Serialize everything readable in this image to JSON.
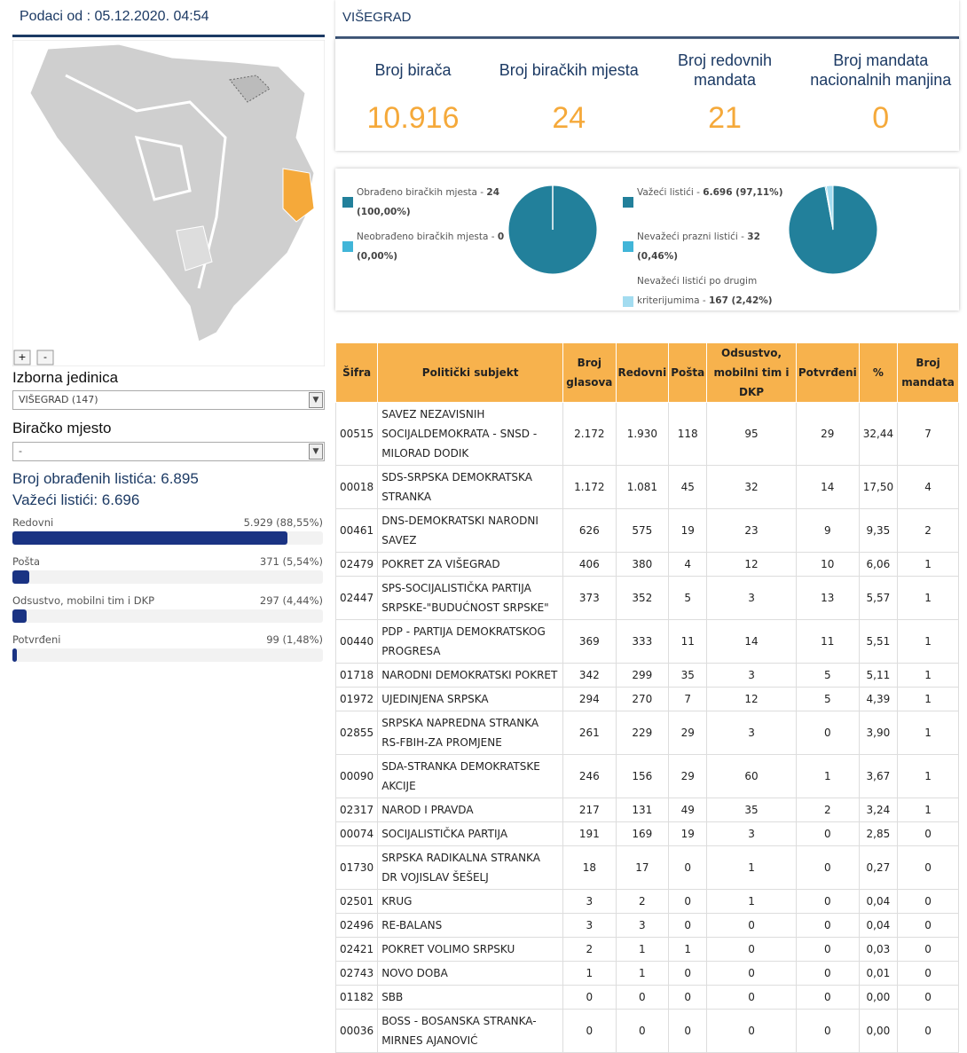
{
  "left": {
    "date_label": "Podaci od : 05.12.2020. 04:54",
    "zoom_in": "+",
    "zoom_out": "-",
    "unit_label": "Izborna jedinica",
    "unit_value": "VIŠEGRAD (147)",
    "station_label": "Biračko mjesto",
    "station_value": "-",
    "processed": "Broj obrađenih listića: 6.895",
    "valid": "Važeći listići: 6.696",
    "bars": [
      {
        "label": "Redovni",
        "value_label": "5.929 (88,55%)",
        "percent": 88.55
      },
      {
        "label": "Pošta",
        "value_label": "371 (5,54%)",
        "percent": 5.54
      },
      {
        "label": "Odsustvo, mobilni tim i DKP",
        "value_label": "297 (4,44%)",
        "percent": 4.44
      },
      {
        "label": "Potvrđeni",
        "value_label": "99 (1,48%)",
        "percent": 1.48
      }
    ]
  },
  "header": {
    "title": "VIŠEGRAD"
  },
  "stats": [
    {
      "label": "Broj birača",
      "value": "10.916"
    },
    {
      "label": "Broj biračkih mjesta",
      "value": "24"
    },
    {
      "label": "Broj redovnih mandata",
      "value": "21"
    },
    {
      "label": "Broj mandata nacionalnih manjina",
      "value": "0"
    }
  ],
  "pies": [
    {
      "items": [
        {
          "label": "Obrađeno biračkih mjesta - ",
          "value_label": "24 (100,00%)",
          "percent": 100,
          "color": "#22809b"
        },
        {
          "label": "Neobrađeno biračkih mjesta - ",
          "value_label": "0 (0,00%)",
          "percent": 0,
          "color": "#41b5d8"
        }
      ]
    },
    {
      "items": [
        {
          "label": "Važeći listići - ",
          "value_label": "6.696",
          "extra": " (97,11%)",
          "percent": 97.11,
          "color": "#22809b"
        },
        {
          "label": "Nevažeći prazni listići - ",
          "value_label": "32",
          "extra": " (0,46%)",
          "percent": 0.46,
          "color": "#41b5d8"
        },
        {
          "label": "Nevažeći listići po drugim kriterijumima - ",
          "value_label": "167 (2,42%)",
          "percent": 2.42,
          "color": "#a3dcf0"
        }
      ]
    }
  ],
  "table": {
    "columns": [
      "Šifra",
      "Politički subjekt",
      "Broj glasova",
      "Redovni",
      "Pošta",
      "Odsustvo, mobilni tim i DKP",
      "Potvrđeni",
      "%",
      "Broj mandata"
    ],
    "rows": [
      [
        "00515",
        "SAVEZ NEZAVISNIH SOCIJALDEMOKRATA - SNSD - MILORAD DODIK",
        "2.172",
        "1.930",
        "118",
        "95",
        "29",
        "32,44",
        "7"
      ],
      [
        "00018",
        "SDS-SRPSKA DEMOKRATSKA STRANKA",
        "1.172",
        "1.081",
        "45",
        "32",
        "14",
        "17,50",
        "4"
      ],
      [
        "00461",
        "DNS-DEMOKRATSKI NARODNI SAVEZ",
        "626",
        "575",
        "19",
        "23",
        "9",
        "9,35",
        "2"
      ],
      [
        "02479",
        "POKRET ZA VIŠEGRAD",
        "406",
        "380",
        "4",
        "12",
        "10",
        "6,06",
        "1"
      ],
      [
        "02447",
        "SPS-SOCIJALISTIČKA PARTIJA SRPSKE-\"BUDUĆNOST SRPSKE\"",
        "373",
        "352",
        "5",
        "3",
        "13",
        "5,57",
        "1"
      ],
      [
        "00440",
        "PDP - PARTIJA DEMOKRATSKOG PROGRESA",
        "369",
        "333",
        "11",
        "14",
        "11",
        "5,51",
        "1"
      ],
      [
        "01718",
        "NARODNI DEMOKRATSKI POKRET",
        "342",
        "299",
        "35",
        "3",
        "5",
        "5,11",
        "1"
      ],
      [
        "01972",
        "UJEDINJENA SRPSKA",
        "294",
        "270",
        "7",
        "12",
        "5",
        "4,39",
        "1"
      ],
      [
        "02855",
        "SRPSKA NAPREDNA STRANKA RS-FBIH-ZA PROMJENE",
        "261",
        "229",
        "29",
        "3",
        "0",
        "3,90",
        "1"
      ],
      [
        "00090",
        "SDA-STRANKA DEMOKRATSKE AKCIJE",
        "246",
        "156",
        "29",
        "60",
        "1",
        "3,67",
        "1"
      ],
      [
        "02317",
        "NAROD I PRAVDA",
        "217",
        "131",
        "49",
        "35",
        "2",
        "3,24",
        "1"
      ],
      [
        "00074",
        "SOCIJALISTIČKA PARTIJA",
        "191",
        "169",
        "19",
        "3",
        "0",
        "2,85",
        "0"
      ],
      [
        "01730",
        "SRPSKA RADIKALNA STRANKA DR VOJISLAV ŠEŠELJ",
        "18",
        "17",
        "0",
        "1",
        "0",
        "0,27",
        "0"
      ],
      [
        "02501",
        "KRUG",
        "3",
        "2",
        "0",
        "1",
        "0",
        "0,04",
        "0"
      ],
      [
        "02496",
        "RE-BALANS",
        "3",
        "3",
        "0",
        "0",
        "0",
        "0,04",
        "0"
      ],
      [
        "02421",
        "POKRET VOLIMO SRPSKU",
        "2",
        "1",
        "1",
        "0",
        "0",
        "0,03",
        "0"
      ],
      [
        "02743",
        "NOVO DOBA",
        "1",
        "1",
        "0",
        "0",
        "0",
        "0,01",
        "0"
      ],
      [
        "01182",
        "SBB",
        "0",
        "0",
        "0",
        "0",
        "0",
        "0,00",
        "0"
      ],
      [
        "00036",
        "BOSS - BOSANSKA STRANKA-MIRNES AJANOVIĆ",
        "0",
        "0",
        "0",
        "0",
        "0",
        "0,00",
        "0"
      ]
    ]
  }
}
